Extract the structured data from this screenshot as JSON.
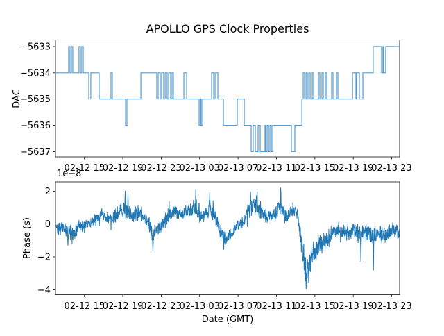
{
  "title": "APOLLO GPS Clock Properties",
  "line_color": "#1f77b4",
  "chart_data": [
    {
      "type": "line",
      "subplot": "top",
      "series_name": "DAC",
      "ylabel": "DAC",
      "draw_style": "steps-post",
      "line_color": "#4e96c8",
      "x_unit": "hours since 02-12 00:00 GMT",
      "xlim": [
        11.99,
        47.83
      ],
      "ylim": [
        -5637.2,
        -5632.75
      ],
      "yticks": [
        -5633,
        -5634,
        -5635,
        -5636,
        -5637
      ],
      "ytick_labels": [
        "−5633",
        "−5634",
        "−5635",
        "−5636",
        "−5637"
      ],
      "xticks": [
        15,
        19,
        23,
        27,
        31,
        35,
        39,
        43,
        47
      ],
      "xtick_labels": [
        "02-12 15",
        "02-12 19",
        "02-12 23",
        "02-13 03",
        "02-13 07",
        "02-13 11",
        "02-13 15",
        "02-13 19",
        "02-13 23"
      ],
      "grid": false,
      "steps": [
        [
          11.99,
          -5634
        ],
        [
          13.36,
          -5633
        ],
        [
          13.5,
          -5634
        ],
        [
          13.65,
          -5633
        ],
        [
          13.79,
          -5634
        ],
        [
          14.44,
          -5633
        ],
        [
          14.59,
          -5634
        ],
        [
          14.73,
          -5633
        ],
        [
          14.88,
          -5634
        ],
        [
          15.46,
          -5635
        ],
        [
          15.67,
          -5634
        ],
        [
          16.54,
          -5635
        ],
        [
          17.77,
          -5634
        ],
        [
          17.91,
          -5635
        ],
        [
          19.29,
          -5636
        ],
        [
          19.43,
          -5635
        ],
        [
          20.88,
          -5634
        ],
        [
          22.54,
          -5635
        ],
        [
          22.68,
          -5634
        ],
        [
          22.9,
          -5635
        ],
        [
          23.04,
          -5634
        ],
        [
          23.26,
          -5635
        ],
        [
          23.41,
          -5634
        ],
        [
          23.62,
          -5635
        ],
        [
          23.77,
          -5634
        ],
        [
          23.99,
          -5635
        ],
        [
          24.13,
          -5634
        ],
        [
          24.27,
          -5635
        ],
        [
          25.36,
          -5634
        ],
        [
          25.65,
          -5635
        ],
        [
          26.95,
          -5636
        ],
        [
          27.09,
          -5635
        ],
        [
          27.17,
          -5636
        ],
        [
          27.31,
          -5635
        ],
        [
          28.25,
          -5634
        ],
        [
          28.47,
          -5635
        ],
        [
          28.61,
          -5634
        ],
        [
          28.9,
          -5635
        ],
        [
          29.48,
          -5636
        ],
        [
          30.92,
          -5635
        ],
        [
          31.65,
          -5636
        ],
        [
          32.37,
          -5637
        ],
        [
          32.58,
          -5636
        ],
        [
          32.8,
          -5637
        ],
        [
          33.09,
          -5636
        ],
        [
          33.31,
          -5637
        ],
        [
          33.81,
          -5636
        ],
        [
          33.89,
          -5637
        ],
        [
          34.03,
          -5636
        ],
        [
          34.18,
          -5637
        ],
        [
          34.32,
          -5636
        ],
        [
          34.47,
          -5637
        ],
        [
          34.61,
          -5636
        ],
        [
          36.56,
          -5637
        ],
        [
          36.92,
          -5636
        ],
        [
          37.65,
          -5635
        ],
        [
          37.79,
          -5634
        ],
        [
          37.93,
          -5635
        ],
        [
          38.08,
          -5634
        ],
        [
          38.22,
          -5635
        ],
        [
          38.37,
          -5634
        ],
        [
          38.51,
          -5635
        ],
        [
          38.73,
          -5634
        ],
        [
          38.87,
          -5635
        ],
        [
          39.38,
          -5634
        ],
        [
          39.52,
          -5635
        ],
        [
          39.74,
          -5634
        ],
        [
          39.88,
          -5635
        ],
        [
          40.1,
          -5634
        ],
        [
          40.24,
          -5635
        ],
        [
          40.75,
          -5634
        ],
        [
          40.89,
          -5635
        ],
        [
          41.26,
          -5634
        ],
        [
          41.4,
          -5635
        ],
        [
          42.92,
          -5634
        ],
        [
          43.28,
          -5635
        ],
        [
          43.35,
          -5634
        ],
        [
          43.64,
          -5635
        ],
        [
          44.0,
          -5634
        ],
        [
          45.08,
          -5633
        ],
        [
          45.95,
          -5634
        ],
        [
          46.09,
          -5633
        ],
        [
          46.17,
          -5634
        ],
        [
          46.38,
          -5633
        ]
      ]
    },
    {
      "type": "line",
      "subplot": "bottom",
      "series_name": "Phase",
      "ylabel": "Phase (s)",
      "xlabel": "Date (GMT)",
      "offset_text": "1e−8",
      "y_scale_factor": 1e-08,
      "line_color": "#1f77b4",
      "x_unit": "hours since 02-12 00:00 GMT",
      "xlim": [
        11.99,
        47.83
      ],
      "ylim": [
        -4.3,
        2.56
      ],
      "yticks": [
        2,
        0,
        -2,
        -4
      ],
      "ytick_labels": [
        "2",
        "0",
        "−2",
        "−4"
      ],
      "xticks": [
        15,
        19,
        23,
        27,
        31,
        35,
        39,
        43,
        47
      ],
      "xtick_labels": [
        "02-12 15",
        "02-12 19",
        "02-12 23",
        "02-13 03",
        "02-13 07",
        "02-13 11",
        "02-13 15",
        "02-13 19",
        "02-13 23"
      ],
      "grid": false,
      "n_points": 1500,
      "noise_seed": 42,
      "trend": [
        [
          12.0,
          -0.1,
          0.35
        ],
        [
          13.1,
          -0.35,
          0.4
        ],
        [
          13.8,
          -0.55,
          0.45
        ],
        [
          14.5,
          -0.15,
          0.35
        ],
        [
          15.6,
          0.0,
          0.35
        ],
        [
          16.9,
          0.55,
          0.4
        ],
        [
          17.6,
          0.25,
          0.35
        ],
        [
          18.6,
          0.65,
          0.45
        ],
        [
          19.2,
          0.9,
          0.55
        ],
        [
          19.9,
          0.45,
          0.4
        ],
        [
          20.8,
          0.7,
          0.45
        ],
        [
          21.5,
          0.2,
          0.4
        ],
        [
          22.1,
          -0.5,
          0.5
        ],
        [
          22.8,
          -0.35,
          0.4
        ],
        [
          23.6,
          0.4,
          0.45
        ],
        [
          24.4,
          0.85,
          0.45
        ],
        [
          25.1,
          0.55,
          0.4
        ],
        [
          25.9,
          1.0,
          0.5
        ],
        [
          26.7,
          0.85,
          0.6
        ],
        [
          27.3,
          0.4,
          0.4
        ],
        [
          28.0,
          0.95,
          0.55
        ],
        [
          28.8,
          0.15,
          0.4
        ],
        [
          29.3,
          -0.7,
          0.45
        ],
        [
          29.9,
          -0.85,
          0.4
        ],
        [
          30.6,
          -0.3,
          0.35
        ],
        [
          31.5,
          0.1,
          0.4
        ],
        [
          32.2,
          1.0,
          0.55
        ],
        [
          33.0,
          1.1,
          0.55
        ],
        [
          33.5,
          0.6,
          0.45
        ],
        [
          34.2,
          0.35,
          0.4
        ],
        [
          35.0,
          0.6,
          0.5
        ],
        [
          35.4,
          1.2,
          0.6
        ],
        [
          36.0,
          0.4,
          0.45
        ],
        [
          36.6,
          0.8,
          0.45
        ],
        [
          37.0,
          0.9,
          0.4
        ],
        [
          37.35,
          0.0,
          0.5
        ],
        [
          37.7,
          -1.6,
          0.9
        ],
        [
          38.15,
          -3.1,
          0.8
        ],
        [
          38.5,
          -2.2,
          0.8
        ],
        [
          38.95,
          -1.7,
          0.7
        ],
        [
          39.45,
          -1.3,
          0.6
        ],
        [
          40.2,
          -1.1,
          0.55
        ],
        [
          40.9,
          -0.5,
          0.5
        ],
        [
          41.6,
          -0.4,
          0.5
        ],
        [
          42.3,
          -0.5,
          0.45
        ],
        [
          43.1,
          -0.4,
          0.45
        ],
        [
          43.8,
          -0.7,
          0.55
        ],
        [
          44.5,
          -0.5,
          0.45
        ],
        [
          45.1,
          -0.8,
          0.6
        ],
        [
          45.8,
          -0.6,
          0.45
        ],
        [
          46.5,
          -0.7,
          0.45
        ],
        [
          47.1,
          -0.3,
          0.4
        ],
        [
          47.55,
          -0.45,
          0.4
        ],
        [
          47.83,
          -0.5,
          0.35
        ]
      ],
      "spikes": [
        [
          13.3,
          -1.3
        ],
        [
          19.25,
          2.0
        ],
        [
          19.55,
          1.85
        ],
        [
          22.15,
          -1.75
        ],
        [
          26.6,
          2.1
        ],
        [
          28.05,
          1.9
        ],
        [
          29.5,
          -1.55
        ],
        [
          32.3,
          1.95
        ],
        [
          33.0,
          2.05
        ],
        [
          35.45,
          2.2
        ],
        [
          38.1,
          -3.95
        ],
        [
          38.35,
          -3.55
        ],
        [
          43.8,
          -2.3
        ],
        [
          45.1,
          -2.8
        ]
      ]
    }
  ]
}
